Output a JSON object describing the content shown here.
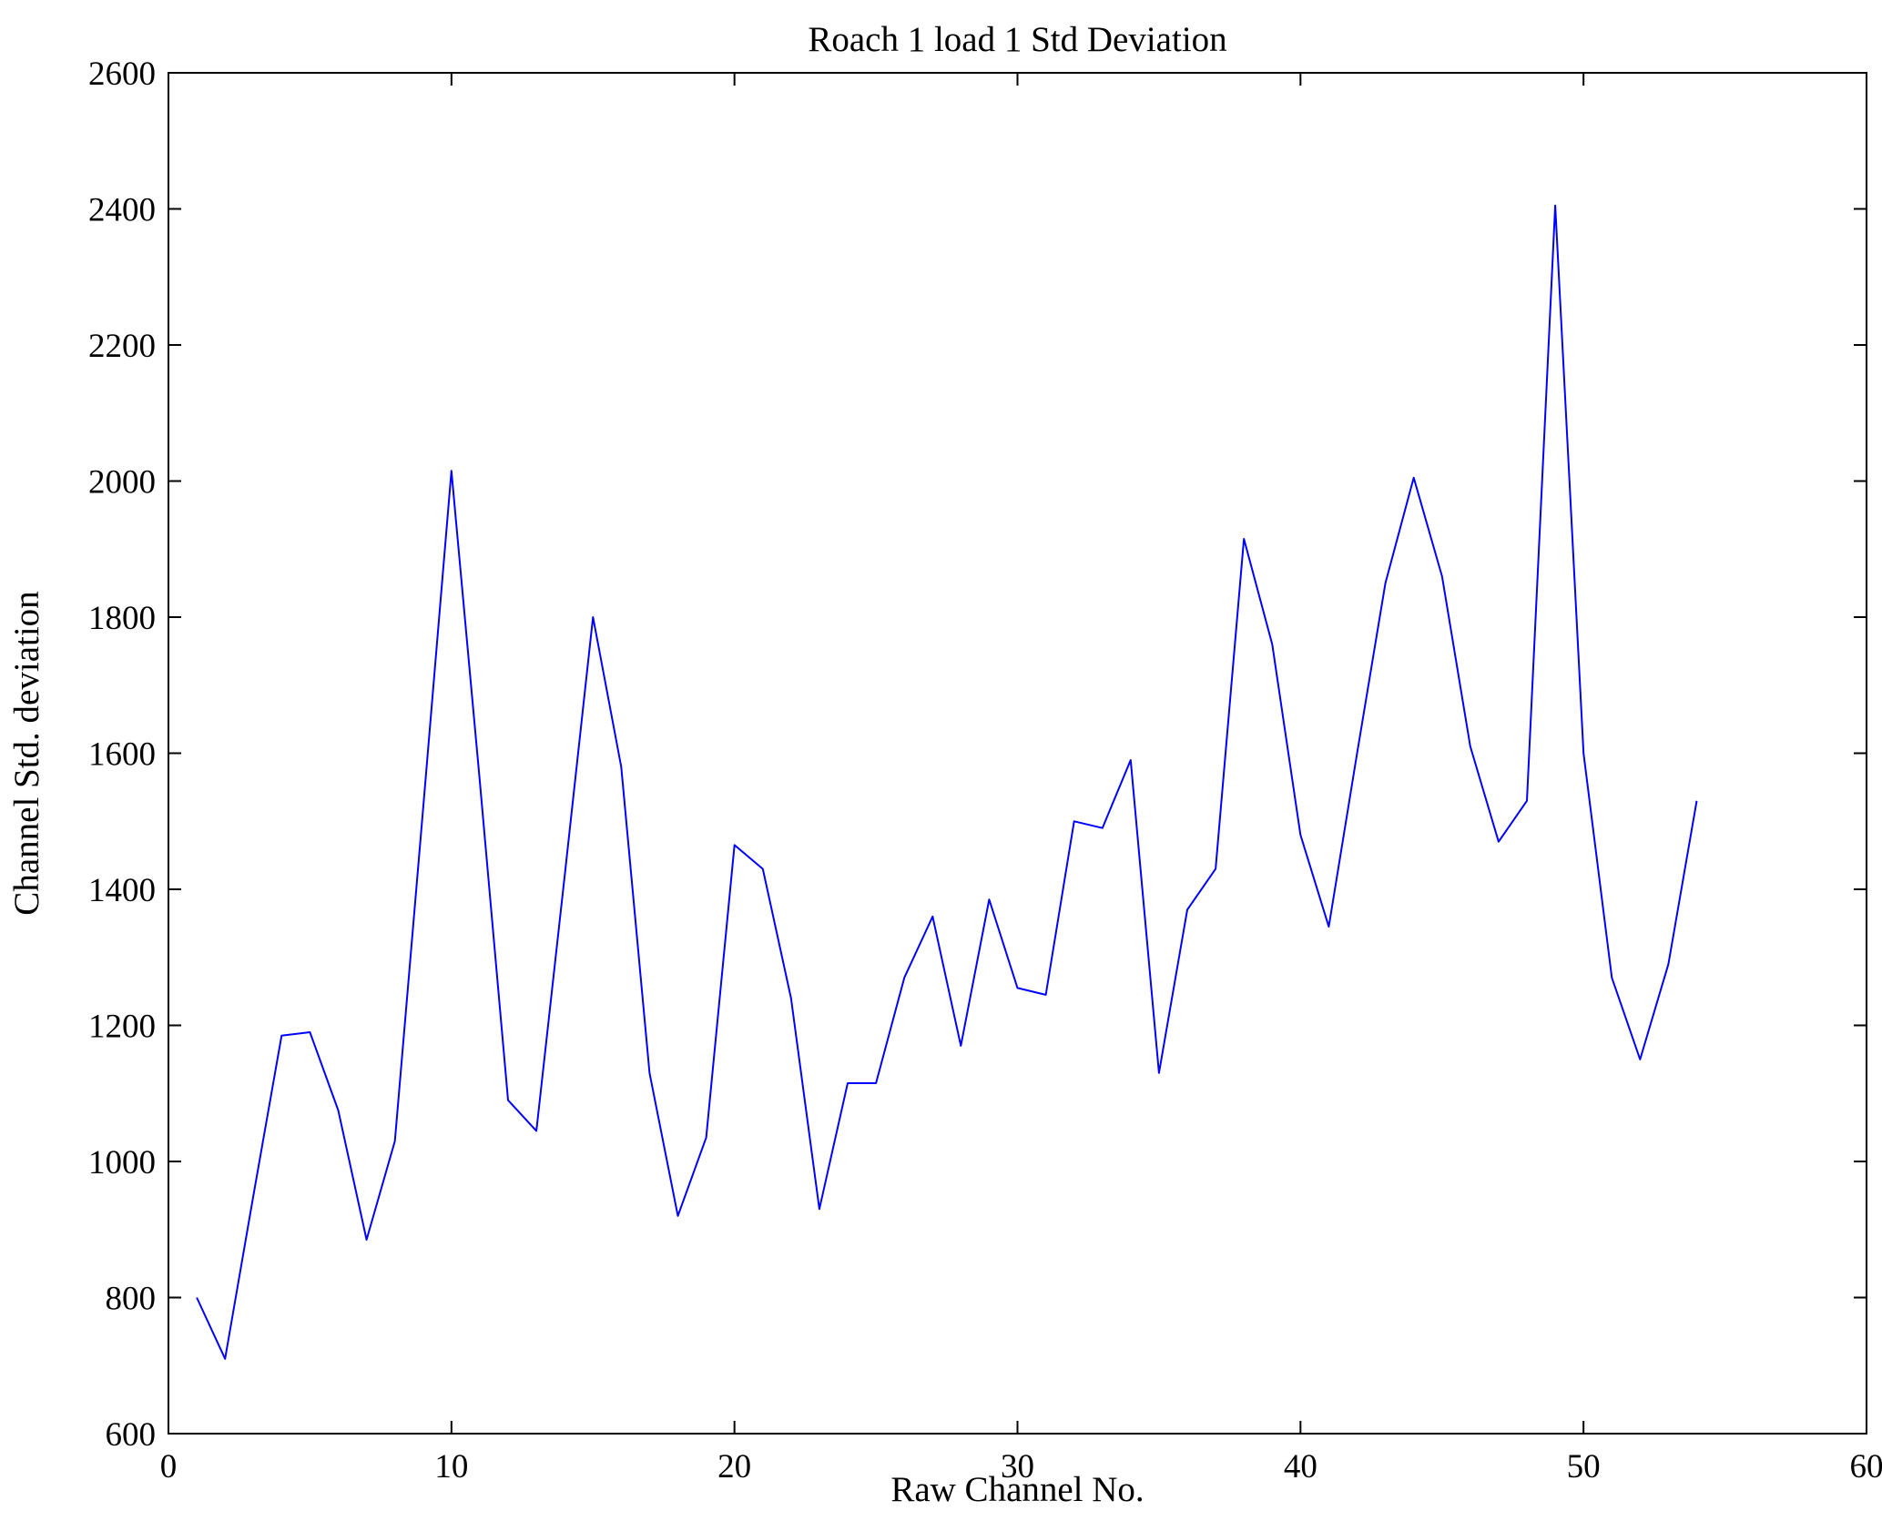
{
  "chart_data": {
    "type": "line",
    "title": "Roach 1 load 1 Std Deviation",
    "xlabel": "Raw Channel No.",
    "ylabel": "Channel Std. deviation",
    "xlim": [
      0,
      60
    ],
    "ylim": [
      600,
      2600
    ],
    "xticks": [
      0,
      10,
      20,
      30,
      40,
      50,
      60
    ],
    "yticks": [
      600,
      800,
      1000,
      1200,
      1400,
      1600,
      1800,
      2000,
      2200,
      2400,
      2600
    ],
    "grid": false,
    "legend_position": "none",
    "line_color": "#0000FF",
    "x": [
      1,
      2,
      3,
      4,
      5,
      6,
      7,
      8,
      9,
      10,
      11,
      12,
      13,
      14,
      15,
      16,
      17,
      18,
      19,
      20,
      21,
      22,
      23,
      24,
      25,
      26,
      27,
      28,
      29,
      30,
      31,
      32,
      33,
      34,
      35,
      36,
      37,
      38,
      39,
      40,
      41,
      42,
      43,
      44,
      45,
      46,
      47,
      48,
      49,
      50,
      51,
      52,
      53,
      54
    ],
    "y": [
      800,
      710,
      950,
      1185,
      1190,
      1075,
      885,
      1030,
      1520,
      2015,
      1560,
      1090,
      1045,
      1420,
      1800,
      1580,
      1130,
      920,
      1035,
      1465,
      1430,
      1240,
      930,
      1115,
      1115,
      1270,
      1360,
      1170,
      1385,
      1255,
      1245,
      1500,
      1490,
      1590,
      1130,
      1370,
      1430,
      1915,
      1760,
      1480,
      1345,
      1600,
      1850,
      2005,
      1860,
      1610,
      1470,
      1530,
      2405,
      1600,
      1270,
      1150,
      1290,
      1530
    ]
  }
}
